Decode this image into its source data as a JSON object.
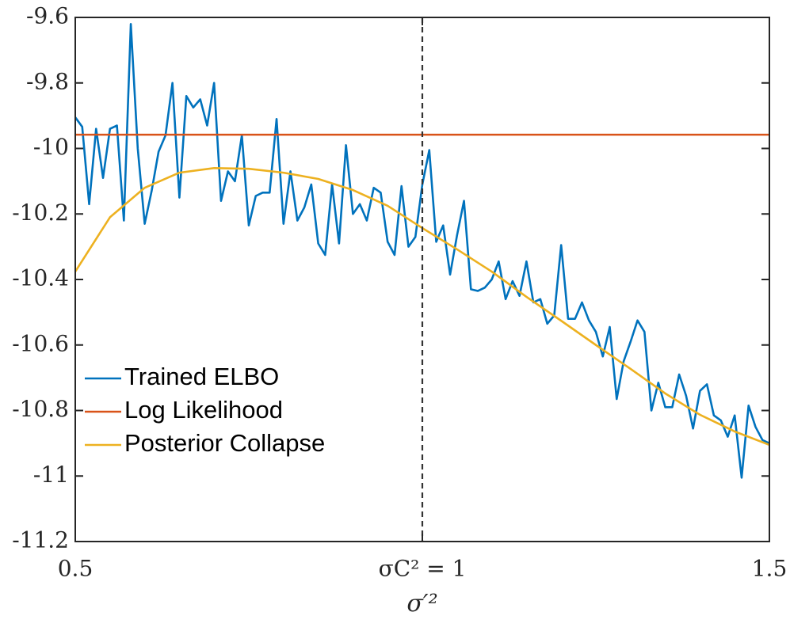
{
  "chart_data": {
    "type": "line",
    "xlabel": "σ′²",
    "xlim": [
      0.5,
      1.5
    ],
    "xticks": [
      0.5,
      {
        "value": 1,
        "label": "σC² = 1"
      },
      1.5
    ],
    "ylim": [
      -11.2,
      -9.6
    ],
    "yticks": [
      -11.2,
      -11,
      -10.8,
      -10.6,
      -10.4,
      -10.2,
      -10,
      -9.8,
      -9.6
    ],
    "vline": 1,
    "legend": "lower-left",
    "series": [
      {
        "name": "Trained ELBO",
        "color": "#0072BD",
        "x": [
          0.5,
          0.51,
          0.52,
          0.53,
          0.54,
          0.55,
          0.56,
          0.57,
          0.58,
          0.59,
          0.6,
          0.61,
          0.62,
          0.63,
          0.64,
          0.65,
          0.66,
          0.67,
          0.68,
          0.69,
          0.7,
          0.71,
          0.72,
          0.73,
          0.74,
          0.75,
          0.76,
          0.77,
          0.78,
          0.79,
          0.8,
          0.81,
          0.82,
          0.83,
          0.84,
          0.85,
          0.86,
          0.87,
          0.88,
          0.89,
          0.9,
          0.91,
          0.92,
          0.93,
          0.94,
          0.95,
          0.96,
          0.97,
          0.98,
          0.99,
          1,
          1.01,
          1.02,
          1.03,
          1.04,
          1.05,
          1.06,
          1.07,
          1.08,
          1.09,
          1.1,
          1.11,
          1.12,
          1.13,
          1.14,
          1.15,
          1.16,
          1.17,
          1.18,
          1.19,
          1.2,
          1.21,
          1.22,
          1.23,
          1.24,
          1.25,
          1.26,
          1.27,
          1.28,
          1.29,
          1.3,
          1.31,
          1.32,
          1.33,
          1.34,
          1.35,
          1.36,
          1.37,
          1.38,
          1.39,
          1.4,
          1.41,
          1.42,
          1.43,
          1.44,
          1.45,
          1.46,
          1.47,
          1.48,
          1.49,
          1.5
        ],
        "values": [
          -9.905,
          -9.934,
          -10.17,
          -9.94,
          -10.09,
          -9.94,
          -9.93,
          -10.22,
          -9.62,
          -10.0,
          -10.23,
          -10.13,
          -10.01,
          -9.96,
          -9.8,
          -10.15,
          -9.84,
          -9.875,
          -9.85,
          -9.93,
          -9.8,
          -10.16,
          -10.07,
          -10.1,
          -9.96,
          -10.235,
          -10.145,
          -10.135,
          -10.135,
          -9.91,
          -10.23,
          -10.07,
          -10.22,
          -10.18,
          -10.11,
          -10.29,
          -10.325,
          -10.11,
          -10.29,
          -9.99,
          -10.2,
          -10.17,
          -10.22,
          -10.12,
          -10.135,
          -10.285,
          -10.325,
          -10.115,
          -10.3,
          -10.27,
          -10.11,
          -10.005,
          -10.285,
          -10.235,
          -10.385,
          -10.265,
          -10.16,
          -10.43,
          -10.435,
          -10.425,
          -10.4,
          -10.345,
          -10.46,
          -10.405,
          -10.45,
          -10.345,
          -10.47,
          -10.46,
          -10.535,
          -10.51,
          -10.295,
          -10.52,
          -10.52,
          -10.47,
          -10.525,
          -10.56,
          -10.635,
          -10.545,
          -10.765,
          -10.65,
          -10.59,
          -10.525,
          -10.56,
          -10.8,
          -10.715,
          -10.79,
          -10.79,
          -10.69,
          -10.755,
          -10.855,
          -10.74,
          -10.72,
          -10.815,
          -10.83,
          -10.88,
          -10.815,
          -11.005,
          -10.785,
          -10.85,
          -10.89,
          -10.9
        ]
      },
      {
        "name": "Log Likelihood",
        "color": "#D95319",
        "x": [
          0.5,
          1.5
        ],
        "values": [
          -9.958,
          -9.958
        ]
      },
      {
        "name": "Posterior Collapse",
        "color": "#EDB120",
        "x": [
          0.5,
          0.55,
          0.6,
          0.65,
          0.7,
          0.75,
          0.8,
          0.85,
          0.9,
          0.95,
          1,
          1.05,
          1.1,
          1.15,
          1.2,
          1.25,
          1.3,
          1.35,
          1.4,
          1.45,
          1.5
        ],
        "values": [
          -10.376,
          -10.21,
          -10.12,
          -10.074,
          -10.06,
          -10.062,
          -10.074,
          -10.093,
          -10.127,
          -10.175,
          -10.243,
          -10.308,
          -10.376,
          -10.453,
          -10.526,
          -10.6,
          -10.673,
          -10.748,
          -10.813,
          -10.864,
          -10.905
        ]
      }
    ]
  }
}
